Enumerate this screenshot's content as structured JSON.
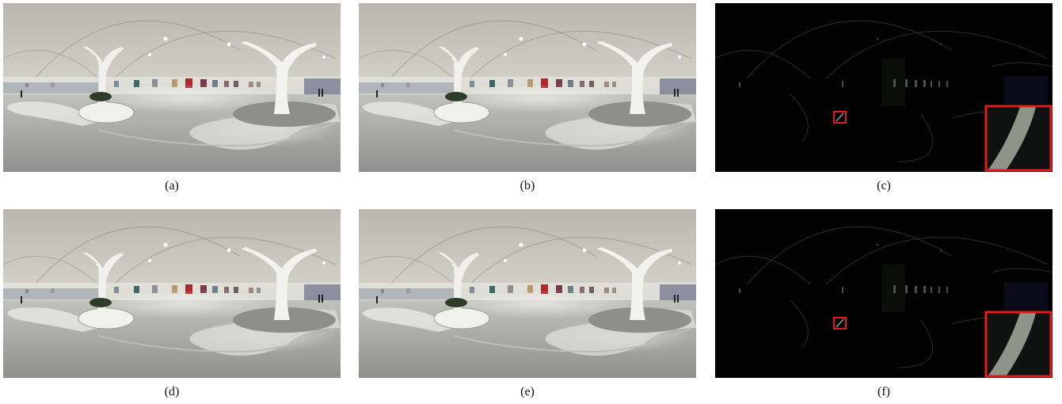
{
  "figure": {
    "panels": [
      {
        "id": "a",
        "caption": "(a)",
        "kind": "panorama"
      },
      {
        "id": "b",
        "caption": "(b)",
        "kind": "panorama"
      },
      {
        "id": "c",
        "caption": "(c)",
        "kind": "difference-map"
      },
      {
        "id": "d",
        "caption": "(d)",
        "kind": "panorama"
      },
      {
        "id": "e",
        "caption": "(e)",
        "kind": "panorama"
      },
      {
        "id": "f",
        "caption": "(f)",
        "kind": "difference-map"
      }
    ],
    "highlight_color": "#e21b1b"
  }
}
